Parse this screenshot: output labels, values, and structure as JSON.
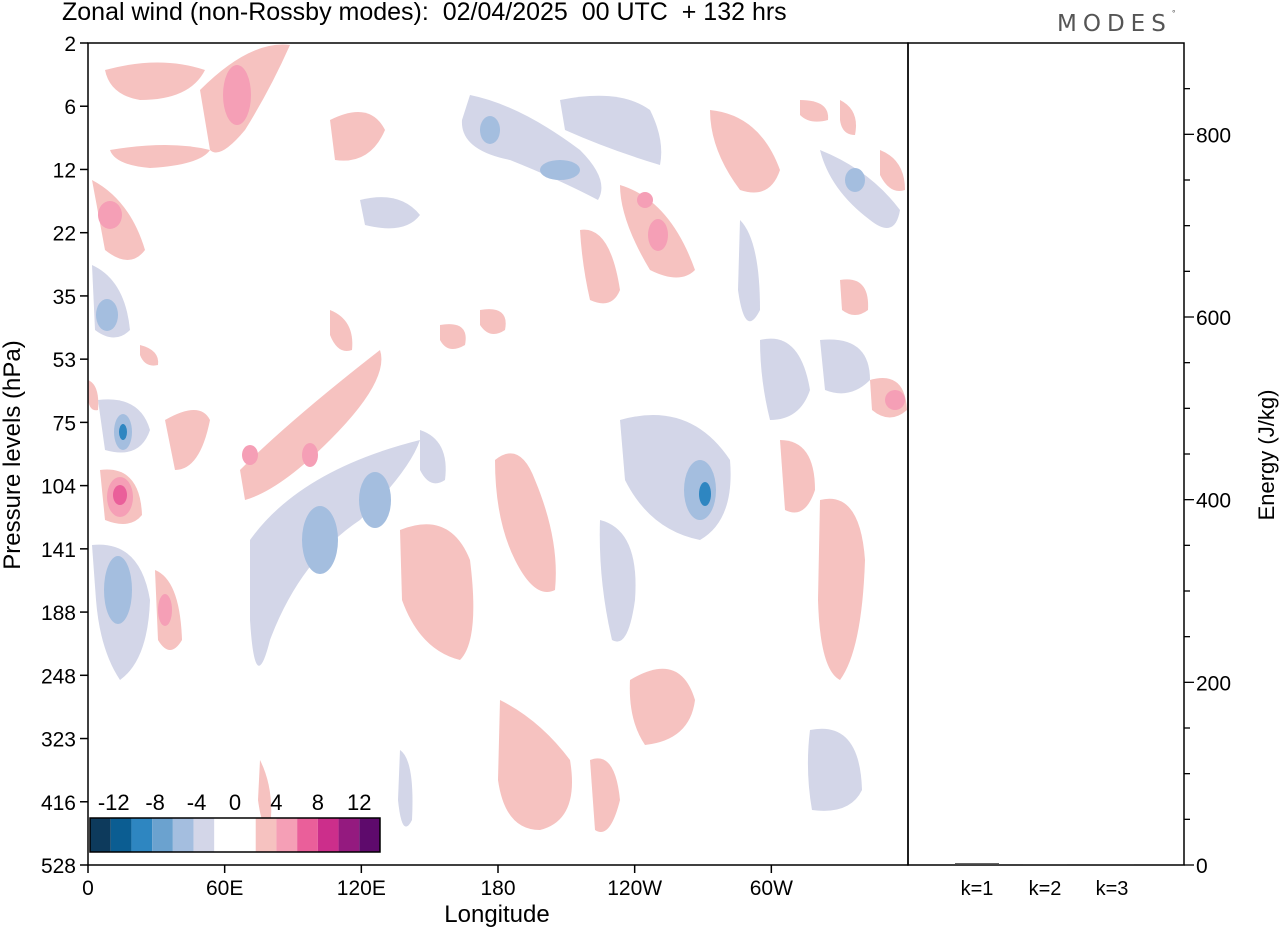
{
  "chart_data": [
    {
      "type": "heatmap",
      "title": "Zonal wind (non-Rossby modes):  02/04/2025  00 UTC  + 132 hrs",
      "xlabel": "Longitude",
      "ylabel": "Pressure levels (hPa)",
      "x_ticks": [
        "0",
        "60E",
        "120E",
        "180",
        "120W",
        "60W"
      ],
      "y_ticks": [
        "2",
        "6",
        "12",
        "22",
        "35",
        "53",
        "75",
        "104",
        "141",
        "188",
        "248",
        "323",
        "416",
        "528"
      ],
      "colorbar": {
        "labels": [
          "-12",
          "-8",
          "-4",
          "0",
          "4",
          "8",
          "12"
        ],
        "colors": [
          "#0d3a5c",
          "#0b5d92",
          "#2e86c1",
          "#6ba2cf",
          "#a4bedf",
          "#d3d6e8",
          "#ffffff",
          "#ffffff",
          "#f6c2c0",
          "#f59fb6",
          "#ea5f9a",
          "#cc2e8b",
          "#941a7f",
          "#5e0a6c"
        ]
      },
      "fields": [
        {
          "lon": 30,
          "level": 7,
          "sign": 1,
          "max": 9
        },
        {
          "lon": 25,
          "level": 6.5,
          "sign": -1,
          "max": 9
        },
        {
          "lon": 65,
          "level": 5.5,
          "sign": 1,
          "max": 5
        },
        {
          "lon": 110,
          "level": 3.5,
          "sign": -1,
          "max": 7
        },
        {
          "lon": 130,
          "level": 2,
          "sign": 1,
          "max": 5
        },
        {
          "lon": 150,
          "level": 1,
          "sign": -1,
          "max": 6
        },
        {
          "lon": 210,
          "level": 5,
          "sign": -1,
          "max": 9
        },
        {
          "lon": 250,
          "level": 3.5,
          "sign": 1,
          "max": 6
        },
        {
          "lon": 300,
          "level": 1.5,
          "sign": -1,
          "max": 7
        },
        {
          "lon": 330,
          "level": 7.5,
          "sign": 1,
          "max": 7
        }
      ]
    },
    {
      "type": "bar",
      "categories": [
        "k=1",
        "k=2",
        "k=3"
      ],
      "values": [
        2,
        1,
        1
      ],
      "ylabel": "Energy (J/kg)",
      "ylim": [
        0,
        900
      ],
      "y_ticks": [
        0,
        200,
        400,
        600,
        800
      ]
    }
  ],
  "brand": {
    "name": "MODES",
    "mark": "°"
  }
}
